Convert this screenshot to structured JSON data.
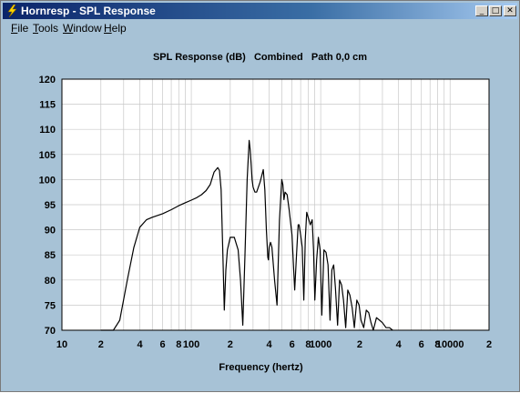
{
  "window": {
    "title": "Hornresp - SPL Response",
    "icon": "lightning-icon",
    "controls": {
      "minimize": "_",
      "maximize": "□",
      "close": "✕"
    }
  },
  "menu": [
    {
      "label": "File",
      "accel": "F"
    },
    {
      "label": "Tools",
      "accel": "T"
    },
    {
      "label": "Window",
      "accel": "W"
    },
    {
      "label": "Help",
      "accel": "H"
    }
  ],
  "colors": {
    "background": "#a7c2d6",
    "plot": "#ffffff",
    "grid": "#c8c8c8",
    "curve": "#000000"
  },
  "chart_data": {
    "type": "line",
    "title": "SPL Response (dB)   Combined   Path 0,0 cm",
    "xlabel": "Frequency (hertz)",
    "ylabel": "",
    "xscale": "log",
    "xlim": [
      10,
      20000
    ],
    "ylim": [
      70,
      120
    ],
    "grid": true,
    "x_tick_labels": [
      "10",
      "2",
      "4",
      "6",
      "8",
      "100",
      "2",
      "4",
      "6",
      "8",
      "1000",
      "2",
      "4",
      "6",
      "8",
      "10000",
      "2"
    ],
    "y_tick_labels": [
      "70",
      "75",
      "80",
      "85",
      "90",
      "95",
      "100",
      "105",
      "110",
      "115",
      "120"
    ],
    "series": [
      {
        "x": [
          20,
          22,
          25,
          28,
          32,
          36,
          40,
          45,
          50,
          60,
          70,
          80,
          90,
          100,
          110,
          120,
          130,
          140,
          150,
          160,
          165,
          170,
          175,
          180,
          185,
          190,
          200,
          215,
          230,
          240,
          250,
          260,
          270,
          280,
          285,
          290,
          295,
          300,
          310,
          320,
          340,
          360,
          370,
          380,
          390,
          395,
          400,
          410,
          420,
          440,
          460,
          480,
          500,
          510,
          520,
          530,
          550,
          570,
          600,
          630,
          650,
          670,
          680,
          700,
          720,
          740,
          760,
          780,
          800,
          830,
          860,
          880,
          900,
          930,
          960,
          990,
          1020,
          1060,
          1100,
          1140,
          1180,
          1220,
          1260,
          1300,
          1350,
          1400,
          1450,
          1500,
          1560,
          1620,
          1680,
          1750,
          1820,
          1900,
          1980,
          2050,
          2150,
          2250,
          2350,
          2450,
          2550,
          2700,
          2850,
          3000,
          3200,
          3400,
          3600
        ],
        "y": [
          70,
          70,
          70,
          72,
          80,
          86.5,
          90.5,
          92,
          92.5,
          93.2,
          94,
          94.8,
          95.4,
          95.9,
          96.4,
          97,
          97.8,
          99,
          101.5,
          102.4,
          101.8,
          98,
          86,
          74,
          82,
          86,
          88.5,
          88.5,
          86,
          80,
          71,
          85,
          100,
          107.8,
          106,
          103,
          100,
          98.5,
          97.5,
          97.5,
          99.5,
          102,
          98,
          90,
          84.5,
          84,
          86.5,
          87.5,
          86.5,
          80,
          75,
          92,
          100,
          99,
          96,
          97.5,
          97,
          94,
          89,
          78,
          85,
          91,
          91,
          89,
          86.5,
          76,
          88,
          93.5,
          92.5,
          91,
          92,
          86,
          76,
          84,
          88.5,
          86,
          73,
          86,
          85.5,
          83,
          72,
          82,
          83,
          78.5,
          71,
          80,
          79,
          76,
          70.5,
          78,
          77,
          74.5,
          70.5,
          76,
          75,
          72,
          70.5,
          74,
          73.5,
          71.5,
          70,
          72.5,
          72,
          71.5,
          70.5,
          70.5,
          70
        ]
      }
    ]
  }
}
